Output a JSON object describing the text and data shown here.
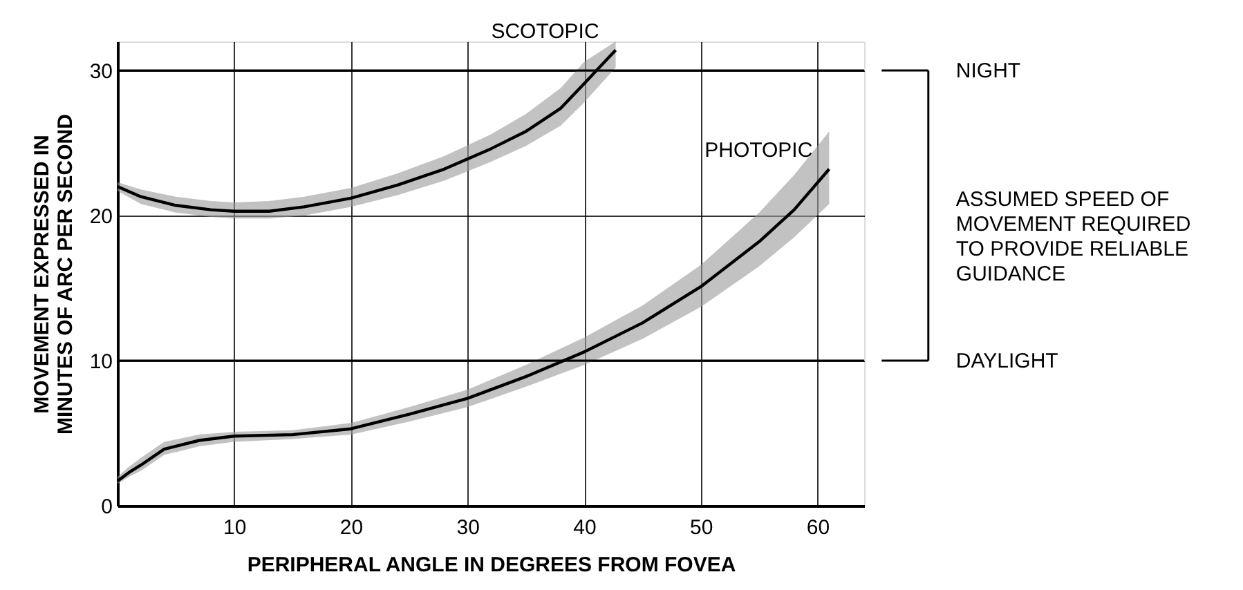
{
  "chart_data": {
    "type": "line",
    "xlabel": "PERIPHERAL ANGLE IN DEGREES FROM FOVEA",
    "ylabel": "MOVEMENT EXPRESSED IN\nMINUTES OF ARC PER SECOND",
    "xlim": [
      0,
      64
    ],
    "xticks": [
      10,
      20,
      30,
      40,
      50,
      60
    ],
    "ylim": [
      0,
      32
    ],
    "yticks": [
      0,
      10,
      20,
      30
    ],
    "grid": true,
    "marker": "none",
    "line_style": "solid",
    "series": [
      {
        "name": "SCOTOPIC",
        "color": "#000000",
        "x": [
          0,
          2,
          5,
          8,
          10,
          13,
          16,
          20,
          24,
          28,
          32,
          35,
          38,
          40,
          42.7
        ],
        "values": [
          22,
          21.3,
          20.7,
          20.4,
          20.3,
          20.3,
          20.6,
          21.2,
          22.1,
          23.2,
          24.6,
          25.8,
          27.4,
          29.1,
          31.4
        ],
        "upper": [
          22.3,
          21.8,
          21.3,
          21.0,
          20.9,
          21.0,
          21.3,
          21.9,
          22.9,
          24.1,
          25.6,
          27.0,
          28.8,
          30.6,
          32
        ],
        "lower": [
          21.7,
          20.8,
          20.2,
          19.9,
          19.8,
          19.8,
          20.0,
          20.6,
          21.4,
          22.4,
          23.7,
          24.8,
          26.2,
          27.8,
          30.2
        ]
      },
      {
        "name": "PHOTOPIC",
        "color": "#000000",
        "x": [
          0,
          1,
          2,
          4,
          7,
          10,
          15,
          20,
          25,
          30,
          35,
          40,
          45,
          50,
          55,
          58,
          61
        ],
        "values": [
          1.7,
          2.3,
          2.8,
          3.9,
          4.5,
          4.8,
          4.9,
          5.3,
          6.3,
          7.4,
          8.9,
          10.6,
          12.6,
          15.1,
          18.2,
          20.4,
          23.2
        ],
        "upper": [
          2.0,
          2.7,
          3.3,
          4.4,
          4.9,
          5.1,
          5.2,
          5.7,
          6.8,
          8.0,
          9.7,
          11.6,
          13.8,
          16.6,
          20.2,
          22.8,
          25.8
        ],
        "lower": [
          1.5,
          2.0,
          2.4,
          3.5,
          4.1,
          4.4,
          4.6,
          4.9,
          5.8,
          6.8,
          8.2,
          9.7,
          11.5,
          13.7,
          16.5,
          18.5,
          20.8
        ]
      }
    ],
    "ref_lines": [
      {
        "axis": "y",
        "value": 30,
        "label": "NIGHT"
      },
      {
        "axis": "y",
        "value": 10,
        "label": "DAYLIGHT"
      }
    ],
    "annotations": [
      "ASSUMED SPEED OF\nMOVEMENT REQUIRED\nTO PROVIDE RELIABLE\nGUIDANCE"
    ]
  }
}
